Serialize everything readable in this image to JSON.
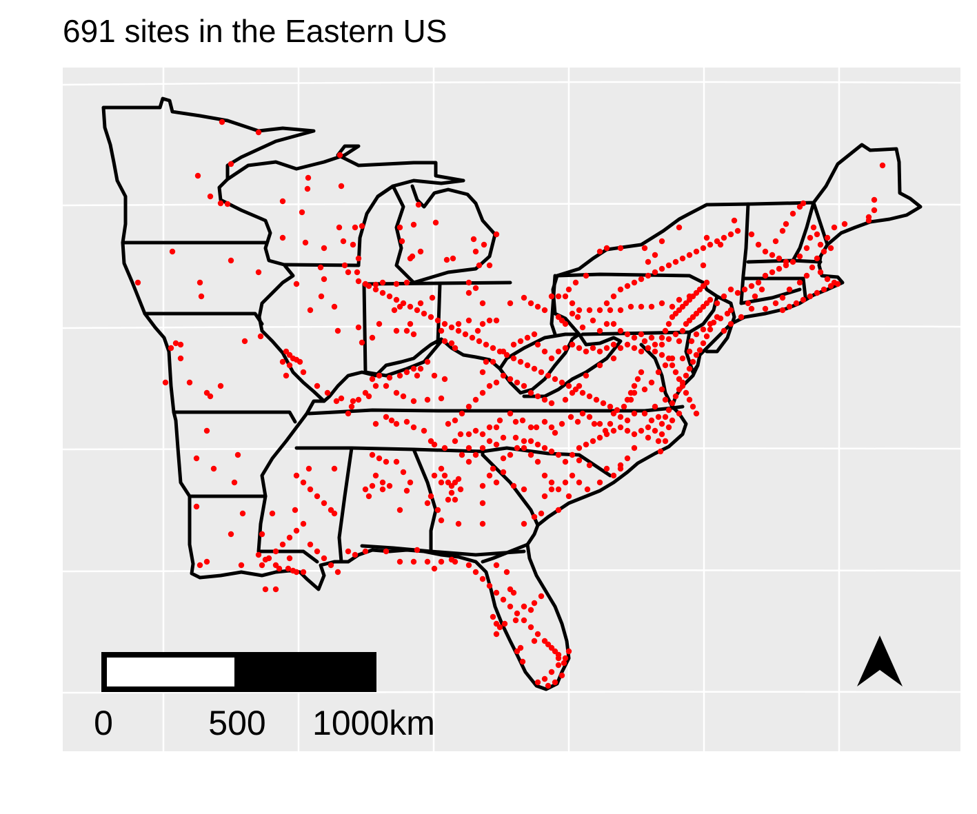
{
  "title": "691 sites in the Eastern US",
  "scale_bar": {
    "labels": [
      "0",
      "500",
      "1000km"
    ],
    "segments": [
      "white",
      "black"
    ]
  },
  "north_arrow": {
    "icon": "north-arrow-icon"
  },
  "colors": {
    "panel_background": "#ebebeb",
    "gridline": "#ffffff",
    "state_border": "#000000",
    "site_point": "#ff0000"
  }
}
